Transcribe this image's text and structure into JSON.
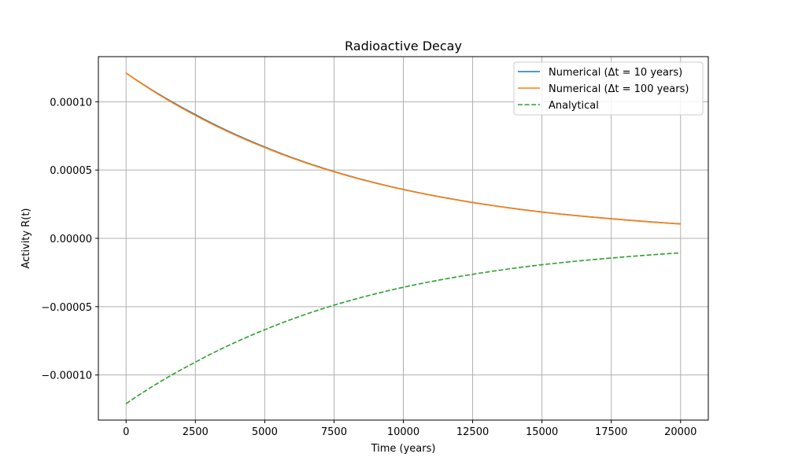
{
  "chart_data": {
    "type": "line",
    "title": "Radioactive Decay",
    "xlabel": "Time (years)",
    "ylabel": "Activity R(t)",
    "xlim": [
      -1000,
      21000
    ],
    "ylim": [
      -0.000133,
      0.000133
    ],
    "xticks": [
      0,
      2500,
      5000,
      7500,
      10000,
      12500,
      15000,
      17500,
      20000
    ],
    "xtick_labels": [
      "0",
      "2500",
      "5000",
      "7500",
      "10000",
      "12500",
      "15000",
      "17500",
      "20000"
    ],
    "yticks": [
      -0.0001,
      -5e-05,
      0.0,
      5e-05,
      0.0001
    ],
    "ytick_labels": [
      "−0.00010",
      "−0.00005",
      "0.00000",
      "0.00005",
      "0.00010"
    ],
    "grid": true,
    "legend_position": "top-right",
    "x": [
      0,
      2500,
      5000,
      7500,
      10000,
      12500,
      15000,
      17500,
      20000
    ],
    "series": [
      {
        "name": "Numerical (Δt = 10 years)",
        "color": "#1f77b4",
        "style": "solid",
        "values": [
          0.000121,
          9.06e-05,
          6.69e-05,
          4.89e-05,
          3.58e-05,
          2.63e-05,
          1.93e-05,
          1.44e-05,
          1.06e-05
        ]
      },
      {
        "name": "Numerical (Δt = 100 years)",
        "color": "#ff7f0e",
        "style": "solid",
        "values": [
          0.000121,
          9e-05,
          6.65e-05,
          4.87e-05,
          3.57e-05,
          2.62e-05,
          1.92e-05,
          1.43e-05,
          1.05e-05
        ]
      },
      {
        "name": "Analytical",
        "color": "#2ca02c",
        "style": "dashed",
        "values": [
          -0.000121,
          -9.06e-05,
          -6.69e-05,
          -4.89e-05,
          -3.58e-05,
          -2.63e-05,
          -1.93e-05,
          -1.44e-05,
          -1.06e-05
        ]
      }
    ]
  }
}
